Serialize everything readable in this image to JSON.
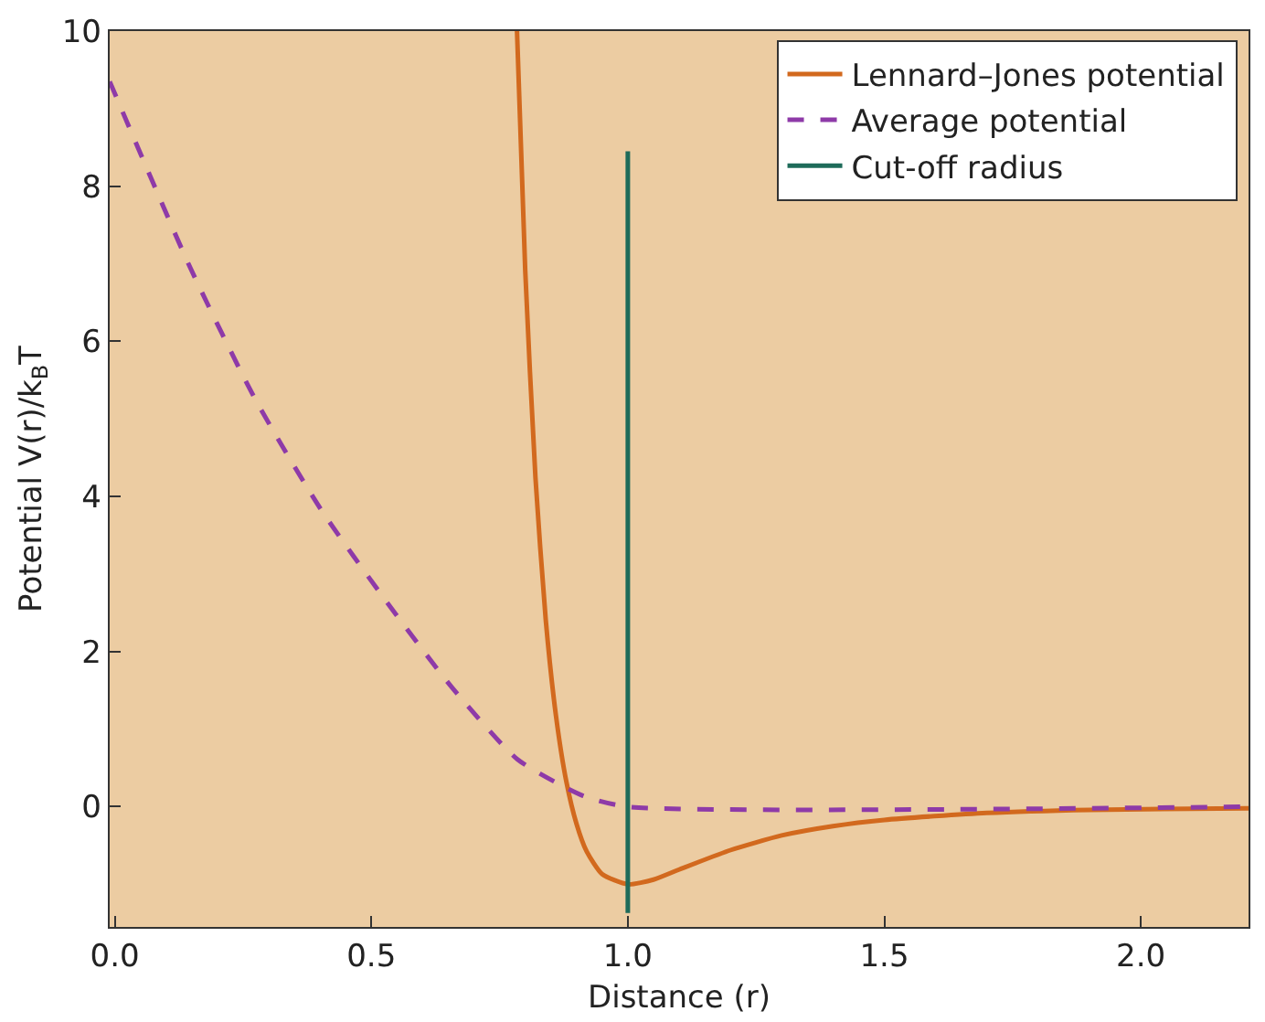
{
  "chart_data": {
    "type": "line",
    "xlabel": "Distance (r)",
    "ylabel": "Potential V(r)/k$_{B}$T",
    "xlim": [
      -0.01,
      2.21
    ],
    "ylim": [
      -1.55,
      10
    ],
    "xticks": [
      {
        "value": 0,
        "label": "0.0"
      },
      {
        "value": 0.5,
        "label": "0.5"
      },
      {
        "value": 1,
        "label": "1.0"
      },
      {
        "value": 1.5,
        "label": "1.5"
      },
      {
        "value": 2,
        "label": "2.0"
      }
    ],
    "yticks": [
      0,
      2,
      4,
      6,
      8,
      10
    ],
    "grid": false,
    "legend": "top right",
    "marker": "none",
    "series": [
      {
        "name": "Lennard–Jones potential",
        "color": "#d2691e",
        "line_style": "solid",
        "x": [
          0.784,
          0.8,
          0.82,
          0.84,
          0.86,
          0.88,
          0.9,
          0.92,
          0.95,
          1.0,
          1.05,
          1.1,
          1.2,
          1.3,
          1.4,
          1.5,
          1.7,
          1.9,
          2.21
        ],
        "values": [
          10,
          6.92,
          4.24,
          2.41,
          1.17,
          0.33,
          -0.22,
          -0.58,
          -0.87,
          -1.0,
          -0.94,
          -0.81,
          -0.56,
          -0.37,
          -0.25,
          -0.17,
          -0.08,
          -0.04,
          -0.02
        ]
      },
      {
        "name": "Average potential",
        "color": "#8e3aa8",
        "line_style": "dashed",
        "x": [
          -0.01,
          0.147,
          0.274,
          0.402,
          0.53,
          0.657,
          0.785,
          0.913,
          1.0,
          2.21
        ],
        "values": [
          9.35,
          6.95,
          5.25,
          3.83,
          2.64,
          1.54,
          0.61,
          0.14,
          0,
          0
        ]
      },
      {
        "name": "Cut-off radius",
        "color": "#1e6b5a",
        "line_style": "solid",
        "x": [
          1,
          1
        ],
        "values": [
          -1.37,
          8.45
        ]
      }
    ]
  }
}
